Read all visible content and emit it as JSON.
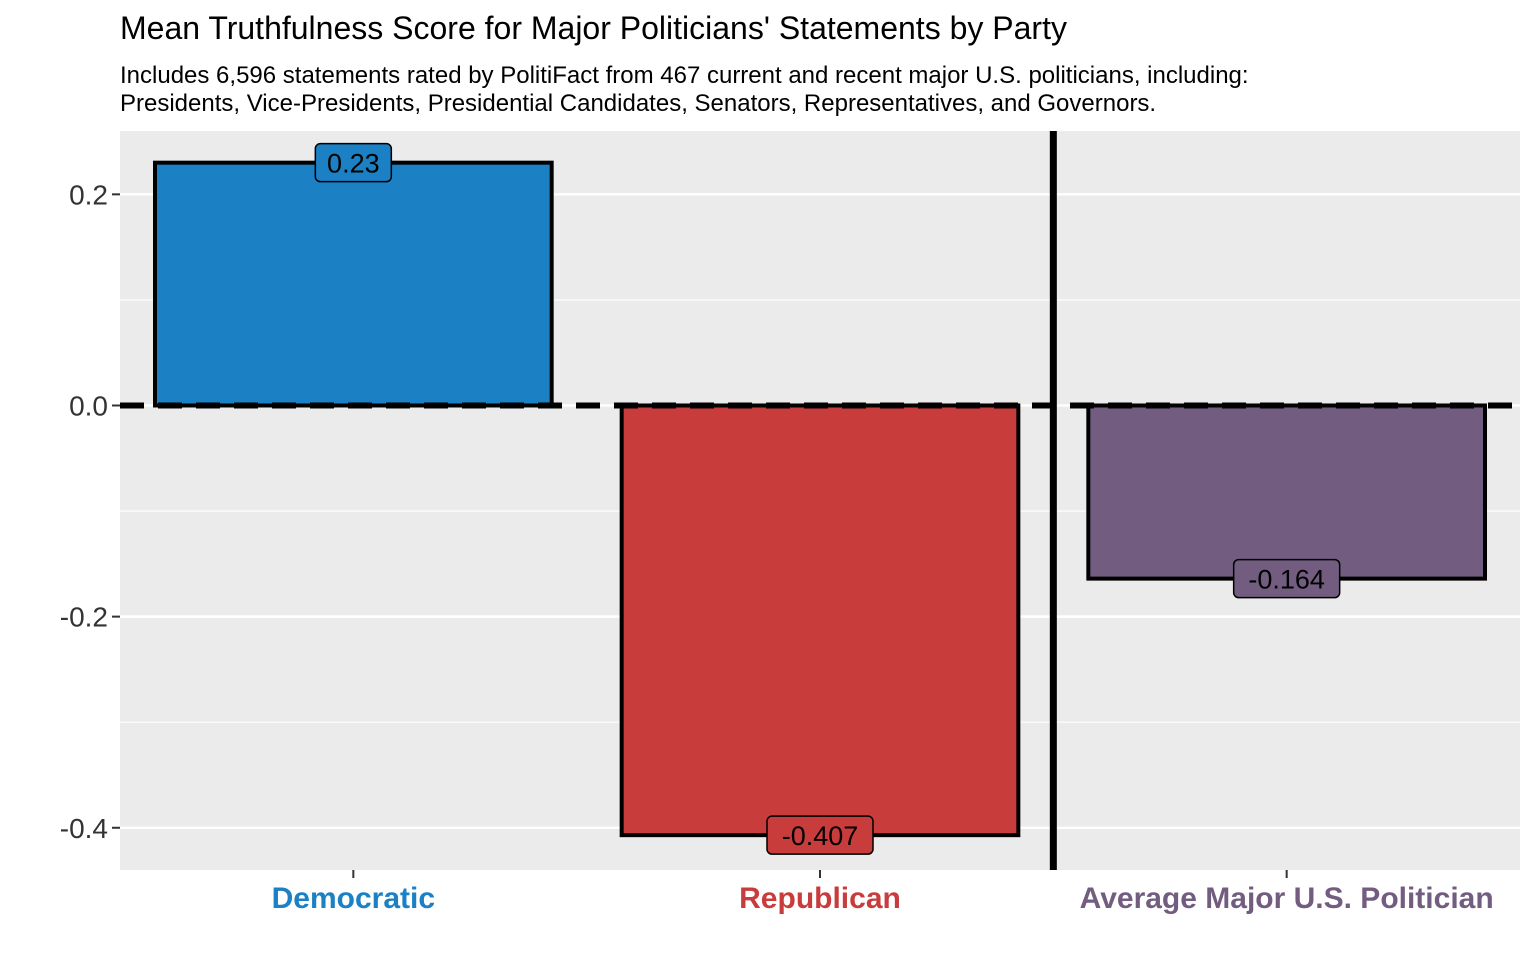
{
  "chart_data": {
    "type": "bar",
    "title": "Mean Truthfulness Score for Major Politicians' Statements by Party",
    "subtitle": [
      "Includes 6,596 statements rated by PolitiFact from 467 current and recent major U.S. politicians, including:",
      "Presidents, Vice-Presidents, Presidential Candidates, Senators, Representatives, and Governors."
    ],
    "categories": [
      "Democratic",
      "Republican",
      "Average Major U.S. Politician"
    ],
    "values": [
      0.23,
      -0.407,
      -0.164
    ],
    "value_labels": [
      "0.23",
      "-0.407",
      "-0.164"
    ],
    "colors": [
      "#1b80c4",
      "#c93c3c",
      "#725d80"
    ],
    "xlabel": "",
    "ylabel": "",
    "ylim": [
      -0.44,
      0.26
    ],
    "yticks": [
      0.2,
      0.0,
      -0.2,
      -0.4
    ],
    "ytick_labels": [
      "0.2",
      "0.0",
      "-0.2",
      "-0.4"
    ],
    "grid": true,
    "reference_line_y": 0.0,
    "panel_background": "#ebebeb",
    "grid_color": "#ffffff"
  }
}
